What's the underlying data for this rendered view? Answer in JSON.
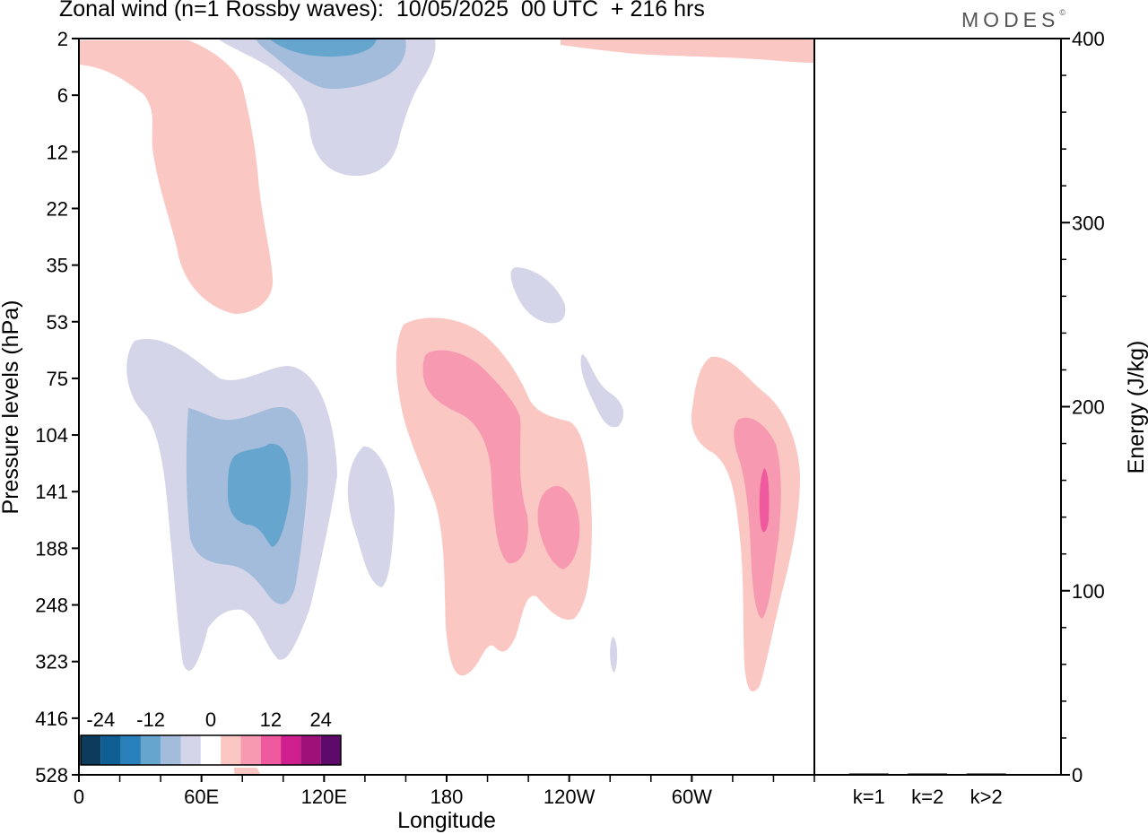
{
  "header": {
    "title": "Zonal wind (n=1 Rossby waves):  10/05/2025  00 UTC  + 216 hrs",
    "brand": "MODES",
    "brand_mark": "©"
  },
  "chart_data": [
    {
      "type": "heatmap",
      "title": "Zonal wind (n=1 Rossby waves):  10/05/2025  00 UTC  + 216 hrs",
      "xlabel": "Longitude",
      "ylabel": "Pressure levels (hPa)",
      "x_ticks": [
        "0",
        "60E",
        "120E",
        "180",
        "120W",
        "60W"
      ],
      "x_tick_values": [
        0,
        60,
        120,
        180,
        240,
        300
      ],
      "xlim": [
        0,
        360
      ],
      "y_ticks": [
        "2",
        "6",
        "12",
        "22",
        "35",
        "53",
        "75",
        "104",
        "141",
        "188",
        "248",
        "323",
        "416",
        "528"
      ],
      "y_scale": "model levels (non-linear, top = 2 hPa)",
      "colorbar": {
        "tick_labels": [
          "-24",
          "-12",
          "0",
          "12",
          "24"
        ],
        "colors": [
          "#0d3b5c",
          "#0f5e94",
          "#2980bb",
          "#66a5cd",
          "#a3bcdb",
          "#d4d5e8",
          "#ffffff",
          "#fbc7c3",
          "#f799b1",
          "#ef5a9e",
          "#cf1f8e",
          "#9d1179",
          "#5e0a6b"
        ]
      },
      "regions": [
        {
          "sign": "positive",
          "level": 1,
          "desc": "stratospheric band 0–100E, 2–53 hPa"
        },
        {
          "sign": "positive",
          "level": 1,
          "desc": "top band 120W–0, 2–6 hPa"
        },
        {
          "sign": "negative",
          "level": 1,
          "desc": "stratospheric lobe 70E–160E, 2–22 hPa"
        },
        {
          "sign": "negative",
          "level": 2,
          "desc": "core near 110E, 2–6 hPa"
        },
        {
          "sign": "negative",
          "level": 3,
          "desc": "core near 110E, 2 hPa"
        },
        {
          "sign": "negative",
          "level": 1,
          "desc": "tropospheric lobe 20E–125E, 53–323 hPa"
        },
        {
          "sign": "negative",
          "level": 2,
          "desc": "core 50E–110E, 104–248 hPa"
        },
        {
          "sign": "negative",
          "level": 3,
          "desc": "core 75E–100E, 104–188 hPa"
        },
        {
          "sign": "negative",
          "level": 1,
          "desc": "small lobe near 140E, 104–248 hPa"
        },
        {
          "sign": "negative",
          "level": 1,
          "desc": "small lobe near 135W, 35–53 hPa"
        },
        {
          "sign": "negative",
          "level": 1,
          "desc": "small lobe near 120W, 75–104 hPa"
        },
        {
          "sign": "positive",
          "level": 1,
          "desc": "lobe 160E–120W, 53–323 hPa"
        },
        {
          "sign": "positive",
          "level": 2,
          "desc": "core 170E–135W, 75–188 hPa"
        },
        {
          "sign": "positive",
          "level": 1,
          "desc": "lobe near 30W, 75–416 hPa"
        },
        {
          "sign": "positive",
          "level": 2,
          "desc": "core near 30W, 104–323 hPa"
        },
        {
          "sign": "positive",
          "level": 3,
          "desc": "core near 25W, 141 hPa"
        }
      ]
    },
    {
      "type": "bar",
      "ylabel": "Energy (J/kg)",
      "categories": [
        "k=1",
        "k=2",
        "k>2"
      ],
      "values": [
        0.5,
        0.3,
        0.3
      ],
      "ylim": [
        0,
        400
      ],
      "y_ticks": [
        "0",
        "100",
        "200",
        "300",
        "400"
      ]
    }
  ]
}
